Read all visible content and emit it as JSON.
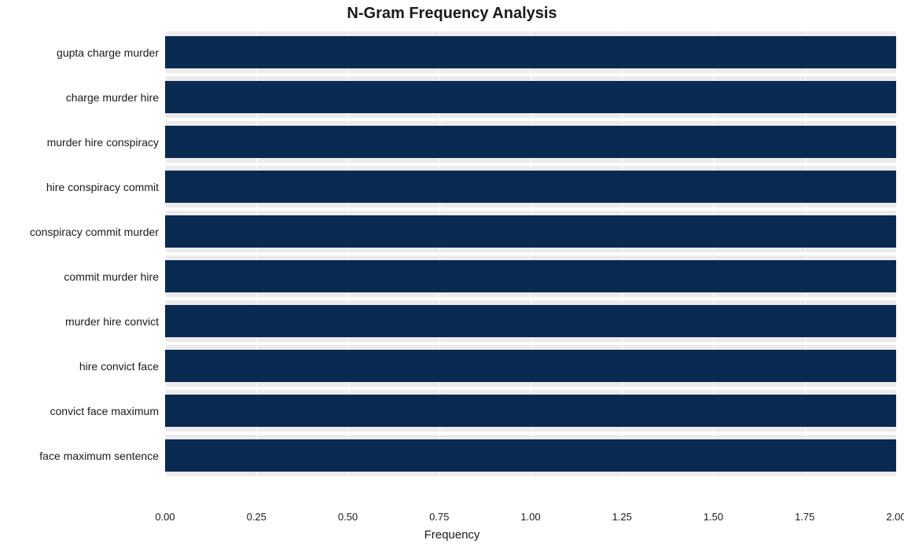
{
  "chart": {
    "type": "bar-horizontal",
    "title": "N-Gram Frequency Analysis",
    "title_fontsize": 20,
    "title_fontweight": "bold",
    "xaxis_label": "Frequency",
    "xaxis_label_fontsize": 15,
    "xlim": [
      0,
      2
    ],
    "xtick_step": 0.25,
    "xticks": [
      "0.00",
      "0.25",
      "0.50",
      "0.75",
      "1.00",
      "1.25",
      "1.50",
      "1.75",
      "2.00"
    ],
    "tick_fontsize": 13,
    "ylabel_fontsize": 14,
    "bar_color": "#0b2a52",
    "row_band_color": "#ebebeb",
    "background_color": "#ffffff",
    "grid_color": "#ffffff",
    "bar_fraction_of_band": 0.73,
    "categories": [
      "gupta charge murder",
      "charge murder hire",
      "murder hire conspiracy",
      "hire conspiracy commit",
      "conspiracy commit murder",
      "commit murder hire",
      "murder hire convict",
      "hire convict face",
      "convict face maximum",
      "face maximum sentence"
    ],
    "values": [
      2,
      2,
      2,
      2,
      2,
      2,
      2,
      2,
      2,
      2
    ]
  }
}
